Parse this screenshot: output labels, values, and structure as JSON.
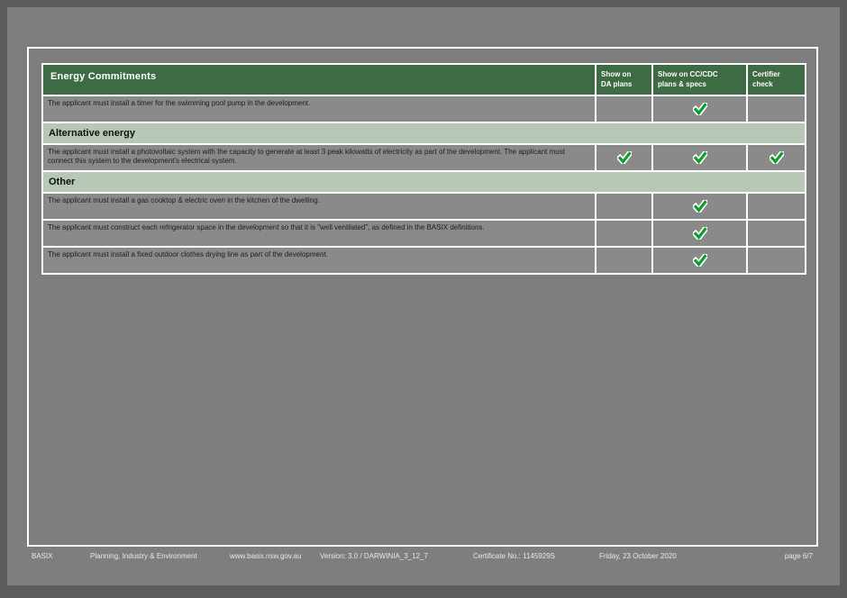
{
  "table": {
    "header": {
      "title": "Energy Commitments",
      "columns": [
        "Show on\nDA plans",
        "Show on CC/CDC\nplans & specs",
        "Certifier\ncheck"
      ]
    },
    "colors": {
      "header_bg": "#3d6b44",
      "section_bg": "#b7c8b6",
      "row_bg": "#8a8a8a",
      "check_green": "#0d9f2d"
    },
    "rows": [
      {
        "type": "row",
        "text": "The applicant must install a timer for the swimming pool pump in the development.",
        "checks": [
          false,
          true,
          false
        ]
      },
      {
        "type": "section",
        "label": "Alternative energy"
      },
      {
        "type": "row",
        "text": "The applicant must install a photovoltaic system with the capacity to generate at least 3 peak kilowatts of electricity as part of the development. The applicant must connect this system to the development's electrical system.",
        "checks": [
          true,
          true,
          true
        ]
      },
      {
        "type": "section",
        "label": "Other"
      },
      {
        "type": "row",
        "text": "The applicant must install a gas cooktop & electric oven in the kitchen of the dwelling.",
        "checks": [
          false,
          true,
          false
        ]
      },
      {
        "type": "row",
        "text": "The applicant must construct each refrigerator space in the development so that it is \"well ventilated\", as defined in the BASIX definitions.",
        "checks": [
          false,
          true,
          false
        ]
      },
      {
        "type": "row",
        "text": "The applicant must install a fixed outdoor clothes drying line as part of the development.",
        "checks": [
          false,
          true,
          false
        ]
      }
    ]
  },
  "footer": {
    "items": [
      "BASIX",
      "Planning, Industry & Environment",
      "www.basix.nsw.gov.au",
      "Version: 3.0 / DARWINIA_3_12_7",
      "Certificate No.: 1145929S",
      "Friday, 23 October 2020"
    ],
    "page_label": "page 6/7"
  }
}
